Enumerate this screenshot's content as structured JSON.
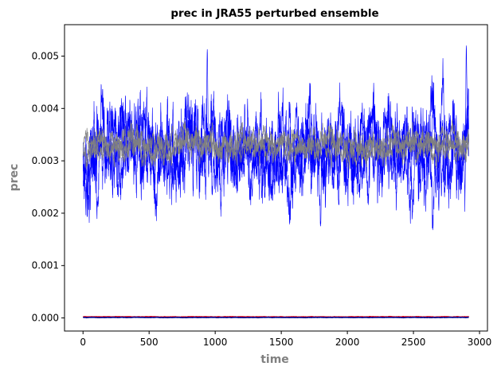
{
  "chart_data": {
    "type": "line",
    "title": "prec in JRA55 perturbed ensemble",
    "xlabel": "time",
    "ylabel": "prec",
    "xlim": [
      -140,
      3060
    ],
    "ylim": [
      -0.00025,
      0.0056
    ],
    "xticks": [
      0,
      500,
      1000,
      1500,
      2000,
      2500,
      3000
    ],
    "yticks": [
      0.0,
      0.001,
      0.002,
      0.003,
      0.004,
      0.005
    ],
    "ytick_format": 3,
    "grid": false,
    "colors": {
      "blue": "#0000ff",
      "gray": "#808080",
      "red": "#ff0000",
      "navy": "#00008b"
    },
    "series": [
      {
        "color": "blue",
        "points": 2920,
        "mean": 0.0032,
        "amplitude": 0.00105,
        "seed": 11,
        "endpoints": [
          {
            "x": 0,
            "y": 0.0029
          },
          {
            "x": 940,
            "y": 0.00513
          },
          {
            "x": 2900,
            "y": 0.0052
          }
        ]
      },
      {
        "color": "blue",
        "points": 2920,
        "mean": 0.0032,
        "amplitude": 0.001,
        "seed": 23
      },
      {
        "color": "blue",
        "points": 2920,
        "mean": 0.0032,
        "amplitude": 0.001,
        "seed": 37
      },
      {
        "color": "gray",
        "points": 2920,
        "mean": 0.0033,
        "amplitude": 0.00035,
        "seed": 41
      },
      {
        "color": "gray",
        "points": 2920,
        "mean": 0.0033,
        "amplitude": 0.00035,
        "seed": 53
      },
      {
        "color": "gray",
        "points": 2920,
        "mean": 0.0033,
        "amplitude": 0.00035,
        "seed": 67
      },
      {
        "color": "red",
        "points": 2920,
        "mean": 2e-05,
        "amplitude": 5e-06,
        "seed": 71
      },
      {
        "color": "navy",
        "points": 2920,
        "mean": 1e-05,
        "amplitude": 4e-06,
        "seed": 83
      }
    ]
  }
}
